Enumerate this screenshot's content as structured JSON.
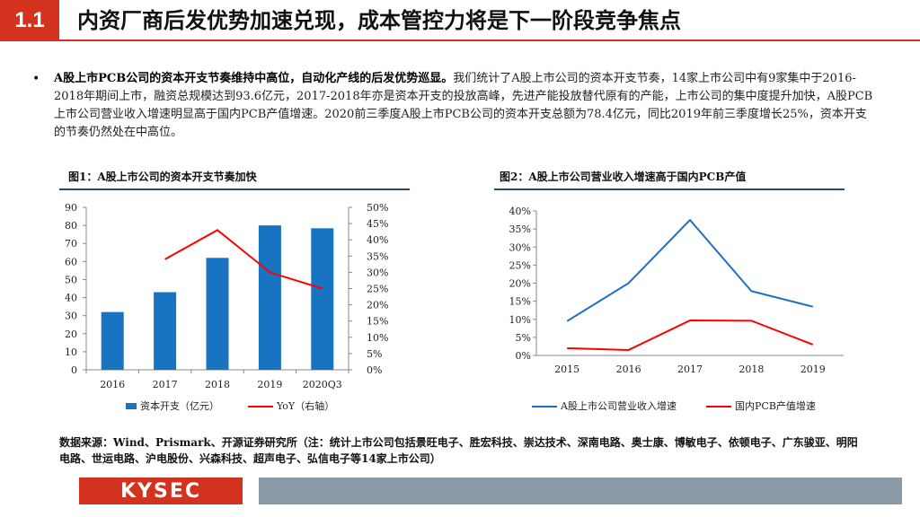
{
  "header": {
    "section_number": "1.1",
    "title": "内资厂商后发优势加速兑现，成本管控力将是下一阶段竞争焦点"
  },
  "body": {
    "bullet": "•",
    "bold_lead": "A股上市PCB公司的资本开支节奏维持中高位，自动化产线的后发优势巡显。",
    "text": "我们统计了A股上市公司的资本开支节奏，14家上市公司中有9家集中于2016-2018年期间上市，融资总规模达到93.6亿元，2017-2018年亦是资本开支的投放高峰，先进产能投放替代原有的产能，上市公司的集中度提升加快，A股PCB上市公司营业收入增速明显高于国内PCB产值增速。2020前三季度A股上市PCB公司的资本开支总额为78.4亿元，同比2019年前三季度增长25%，资本开支的节奏仍然处在中高位。"
  },
  "colors": {
    "accent_red": "#d2321e",
    "bar_blue": "#1874c0",
    "line_red": "#ff0000",
    "line_blue": "#1f6fbf",
    "footer_gray": "#8a9aa8"
  },
  "chart_data": [
    {
      "type": "bar",
      "title": "图1：A股上市公司的资本开支节奏加快",
      "categories": [
        "2016",
        "2017",
        "2018",
        "2019",
        "2020Q3"
      ],
      "ylim": [
        0,
        90
      ],
      "yticks": [
        "0",
        "10",
        "20",
        "30",
        "40",
        "50",
        "60",
        "70",
        "80",
        "90"
      ],
      "y2lim": [
        0,
        0.5
      ],
      "y2ticks": [
        "0%",
        "5%",
        "10%",
        "15%",
        "20%",
        "25%",
        "30%",
        "35%",
        "40%",
        "45%",
        "50%"
      ],
      "series": [
        {
          "name": "资本开支（亿元）",
          "type": "bar",
          "axis": "left",
          "values": [
            32,
            43,
            62,
            80,
            78.4
          ]
        },
        {
          "name": "YoY（右轴）",
          "type": "line",
          "axis": "right",
          "values": [
            null,
            0.34,
            0.43,
            0.3,
            0.25
          ]
        }
      ],
      "legend_position": "bottom"
    },
    {
      "type": "line",
      "title": "图2：A股上市公司营业收入增速高于国内PCB产值",
      "categories": [
        "2015",
        "2016",
        "2017",
        "2018",
        "2019"
      ],
      "ylim": [
        0,
        0.4
      ],
      "yticks": [
        "0%",
        "5%",
        "10%",
        "15%",
        "20%",
        "25%",
        "30%",
        "35%",
        "40%"
      ],
      "series": [
        {
          "name": "A股上市公司营业收入增速",
          "values": [
            0.095,
            0.2,
            0.375,
            0.178,
            0.135
          ]
        },
        {
          "name": "国内PCB产值增速",
          "values": [
            0.02,
            0.015,
            0.097,
            0.096,
            0.03
          ]
        }
      ],
      "legend_position": "bottom"
    }
  ],
  "source": {
    "text": "数据来源：Wind、Prismark、开源证券研究所（注：统计上市公司包括景旺电子、胜宏科技、崇达技术、深南电路、奥士康、博敏电子、依顿电子、广东骏亚、明阳电路、世运电路、沪电股份、兴森科技、超声电子、弘信电子等14家上市公司）"
  },
  "footer": {
    "logo_text": "KYSEC"
  }
}
